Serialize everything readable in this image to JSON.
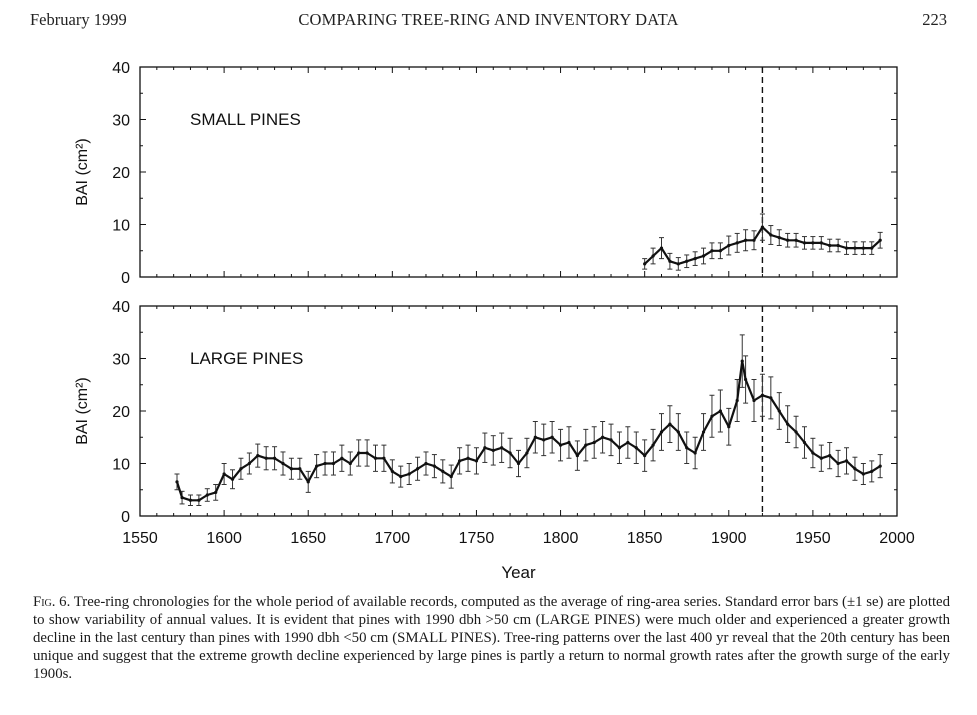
{
  "header": {
    "left": "February 1999",
    "title": "COMPARING TREE-RING AND INVENTORY DATA",
    "page_number": "223"
  },
  "caption": {
    "label": "Fig. 6.",
    "text": "Tree-ring chronologies for the whole period of available records, computed as the average of ring-area series. Standard error bars (±1 se) are plotted to show variability of annual values. It is evident that pines with 1990 dbh >50 cm (LARGE PINES) were much older and experienced a greater growth decline in the last century than pines with 1990 dbh <50 cm (SMALL PINES). Tree-ring patterns over the last 400 yr reveal that the 20th century has been unique and suggest that the extreme growth decline experienced by large pines is partly a return to normal growth rates after the growth surge of the early 1900s."
  },
  "chart_data": [
    {
      "type": "line",
      "panel_label": "SMALL PINES",
      "ylabel": "BAI (cm²)",
      "xlim": [
        1550,
        2000
      ],
      "ylim": [
        0,
        40
      ],
      "yticks": [
        0,
        10,
        20,
        30,
        40
      ],
      "xtick_labels": [],
      "reference_line_x": 1920,
      "error_bars": "±1 SE",
      "series": [
        {
          "x": [
            1850,
            1855,
            1860,
            1865,
            1870,
            1875,
            1880,
            1885,
            1890,
            1895,
            1900,
            1905,
            1910,
            1915,
            1920,
            1925,
            1930,
            1935,
            1940,
            1945,
            1950,
            1955,
            1960,
            1965,
            1970,
            1975,
            1980,
            1985,
            1990
          ],
          "y": [
            2.5,
            4.0,
            5.5,
            3.0,
            2.5,
            3.0,
            3.5,
            4.0,
            5.0,
            5.0,
            6.0,
            6.5,
            7.0,
            7.0,
            9.5,
            8.0,
            7.5,
            7.0,
            7.0,
            6.5,
            6.5,
            6.5,
            6.0,
            6.0,
            5.5,
            5.5,
            5.5,
            5.5,
            7.0
          ],
          "se": [
            1.0,
            1.5,
            2.0,
            1.5,
            1.2,
            1.2,
            1.3,
            1.5,
            1.5,
            1.5,
            1.8,
            1.8,
            2.0,
            1.8,
            2.5,
            1.8,
            1.5,
            1.3,
            1.3,
            1.2,
            1.2,
            1.2,
            1.2,
            1.2,
            1.2,
            1.2,
            1.2,
            1.2,
            1.5
          ]
        }
      ]
    },
    {
      "type": "line",
      "panel_label": "LARGE PINES",
      "ylabel": "BAI (cm²)",
      "xlabel": "Year",
      "xlim": [
        1550,
        2000
      ],
      "ylim": [
        0,
        40
      ],
      "yticks": [
        0,
        10,
        20,
        30,
        40
      ],
      "xtick_labels": [
        "1550",
        "1600",
        "1650",
        "1700",
        "1750",
        "1800",
        "1850",
        "1900",
        "1950",
        "2000"
      ],
      "reference_line_x": 1920,
      "error_bars": "±1 SE",
      "series": [
        {
          "x": [
            1572,
            1575,
            1580,
            1585,
            1590,
            1595,
            1600,
            1605,
            1610,
            1615,
            1620,
            1625,
            1630,
            1635,
            1640,
            1645,
            1650,
            1655,
            1660,
            1665,
            1670,
            1675,
            1680,
            1685,
            1690,
            1695,
            1700,
            1705,
            1710,
            1715,
            1720,
            1725,
            1730,
            1735,
            1740,
            1745,
            1750,
            1755,
            1760,
            1765,
            1770,
            1775,
            1780,
            1785,
            1790,
            1795,
            1800,
            1805,
            1810,
            1815,
            1820,
            1825,
            1830,
            1835,
            1840,
            1845,
            1850,
            1855,
            1860,
            1865,
            1870,
            1875,
            1880,
            1885,
            1890,
            1895,
            1900,
            1905,
            1908,
            1910,
            1915,
            1920,
            1925,
            1930,
            1935,
            1940,
            1945,
            1950,
            1955,
            1960,
            1965,
            1970,
            1975,
            1980,
            1985,
            1990
          ],
          "y": [
            6.5,
            3.5,
            3.0,
            3.0,
            4.0,
            4.5,
            8.0,
            7.0,
            9.0,
            10.0,
            11.5,
            11.0,
            11.0,
            10.0,
            9.0,
            9.0,
            6.5,
            9.5,
            10.0,
            10.0,
            11.0,
            10.0,
            12.0,
            12.0,
            11.0,
            11.0,
            8.5,
            7.5,
            8.0,
            9.0,
            10.0,
            9.5,
            8.5,
            7.5,
            10.5,
            11.0,
            10.5,
            13.0,
            12.5,
            13.0,
            12.0,
            10.0,
            12.0,
            15.0,
            14.5,
            15.0,
            13.5,
            14.0,
            11.5,
            13.5,
            14.0,
            15.0,
            14.5,
            13.0,
            14.0,
            13.0,
            11.5,
            13.5,
            16.0,
            17.5,
            16.0,
            13.0,
            12.0,
            16.0,
            19.0,
            20.0,
            17.0,
            22.0,
            29.5,
            26.0,
            22.0,
            23.0,
            22.5,
            20.0,
            17.5,
            16.0,
            14.0,
            12.0,
            11.0,
            11.5,
            10.0,
            10.5,
            9.0,
            8.0,
            8.5,
            9.5
          ],
          "se": [
            1.5,
            1.2,
            1.0,
            1.0,
            1.2,
            1.5,
            2.0,
            1.8,
            2.0,
            2.0,
            2.2,
            2.2,
            2.2,
            2.2,
            2.0,
            2.0,
            2.0,
            2.2,
            2.2,
            2.2,
            2.5,
            2.2,
            2.5,
            2.5,
            2.5,
            2.5,
            2.2,
            2.0,
            2.0,
            2.2,
            2.2,
            2.2,
            2.2,
            2.2,
            2.5,
            2.5,
            2.5,
            2.8,
            2.8,
            2.8,
            2.8,
            2.5,
            2.8,
            3.0,
            3.0,
            3.0,
            3.0,
            3.0,
            2.8,
            3.0,
            3.0,
            3.0,
            3.0,
            3.0,
            3.0,
            3.0,
            3.0,
            3.0,
            3.5,
            3.5,
            3.5,
            3.0,
            3.0,
            3.5,
            4.0,
            4.0,
            3.5,
            4.0,
            5.0,
            4.5,
            4.0,
            4.0,
            4.0,
            3.5,
            3.5,
            3.0,
            3.0,
            2.8,
            2.5,
            2.5,
            2.5,
            2.5,
            2.2,
            2.0,
            2.0,
            2.2
          ]
        }
      ]
    }
  ]
}
